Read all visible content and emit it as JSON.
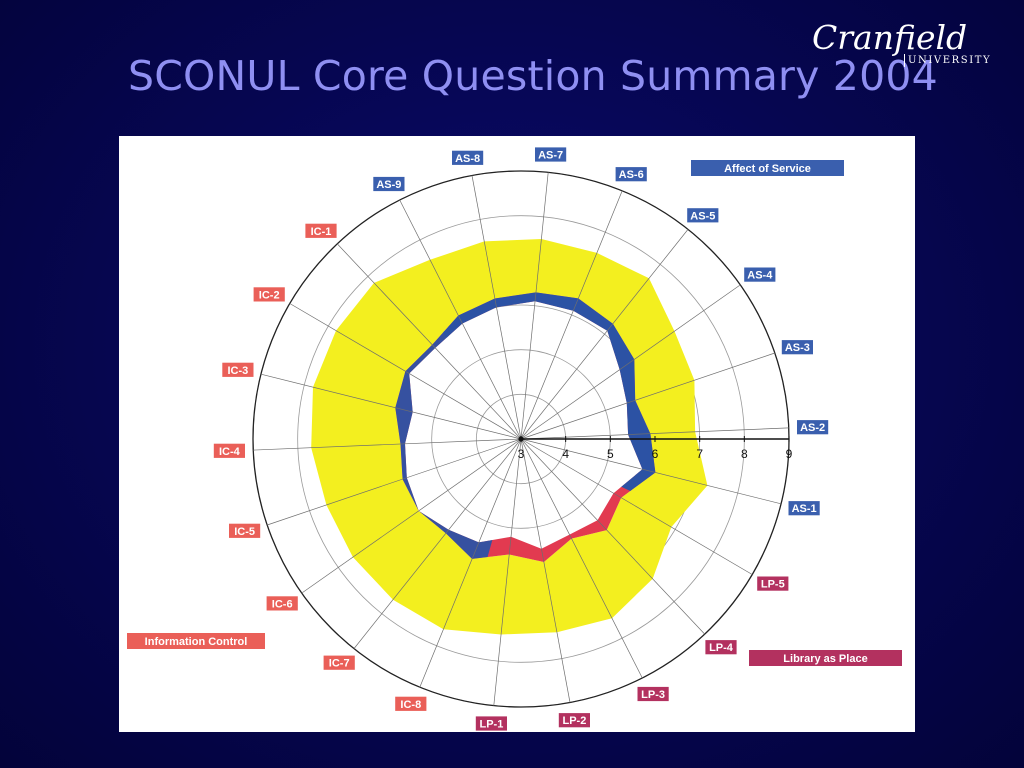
{
  "slide": {
    "title": "SCONUL Core Question Summary 2004"
  },
  "logo": {
    "name": "Cranfield",
    "sub": "UNIVERSITY"
  },
  "colors": {
    "band": "#f3ef1f",
    "perceived": "#2c52a4",
    "deficit": "#e23a50",
    "affect": "#3a5fae",
    "info": "#ea5f58",
    "place": "#b3315f"
  },
  "chart_data": {
    "type": "radar",
    "scale": {
      "min": 3,
      "max": 9,
      "ticks": [
        "3",
        "4",
        "5",
        "6",
        "7",
        "8",
        "9"
      ]
    },
    "axes": [
      {
        "label": "AS-1",
        "group": "affect",
        "minimum": 6.1,
        "desired": 7.3,
        "perceived": 5.8
      },
      {
        "label": "AS-2",
        "group": "affect",
        "minimum": 5.9,
        "desired": 6.9,
        "perceived": 5.4
      },
      {
        "label": "AS-3",
        "group": "affect",
        "minimum": 5.7,
        "desired": 7.1,
        "perceived": 5.5
      },
      {
        "label": "AS-4",
        "group": "affect",
        "minimum": 6.1,
        "desired": 7.2,
        "perceived": 5.7
      },
      {
        "label": "AS-5",
        "group": "affect",
        "minimum": 6.3,
        "desired": 7.6,
        "perceived": 6.1
      },
      {
        "label": "AS-6",
        "group": "affect",
        "minimum": 6.4,
        "desired": 7.5,
        "perceived": 6.1
      },
      {
        "label": "AS-7",
        "group": "affect",
        "minimum": 6.3,
        "desired": 7.5,
        "perceived": 6.1
      },
      {
        "label": "AS-8",
        "group": "affect",
        "minimum": 6.2,
        "desired": 7.5,
        "perceived": 6.0
      },
      {
        "label": "AS-9",
        "group": "affect",
        "minimum": 6.1,
        "desired": 7.5,
        "perceived": 5.9
      },
      {
        "label": "IC-1",
        "group": "info",
        "minimum": 5.9,
        "desired": 7.8,
        "perceived": 5.8
      },
      {
        "label": "IC-2",
        "group": "info",
        "minimum": 6.0,
        "desired": 7.8,
        "perceived": 5.9
      },
      {
        "label": "IC-3",
        "group": "info",
        "minimum": 5.9,
        "desired": 7.8,
        "perceived": 5.5
      },
      {
        "label": "IC-4",
        "group": "info",
        "minimum": 5.7,
        "desired": 7.7,
        "perceived": 5.6
      },
      {
        "label": "IC-5",
        "group": "info",
        "minimum": 5.8,
        "desired": 7.6,
        "perceived": 5.7
      },
      {
        "label": "IC-6",
        "group": "info",
        "minimum": 5.8,
        "desired": 7.6,
        "perceived": 5.8
      },
      {
        "label": "IC-7",
        "group": "info",
        "minimum": 5.7,
        "desired": 7.6,
        "perceived": 5.6
      },
      {
        "label": "IC-8",
        "group": "info",
        "minimum": 5.9,
        "desired": 7.6,
        "perceived": 5.5
      },
      {
        "label": "LP-1",
        "group": "place",
        "minimum": 5.6,
        "desired": 7.4,
        "perceived": 5.2
      },
      {
        "label": "LP-2",
        "group": "place",
        "minimum": 5.8,
        "desired": 7.4,
        "perceived": 5.5
      },
      {
        "label": "LP-3",
        "group": "place",
        "minimum": 5.5,
        "desired": 7.5,
        "perceived": 5.4
      },
      {
        "label": "LP-4",
        "group": "place",
        "minimum": 5.8,
        "desired": 7.3,
        "perceived": 5.5
      },
      {
        "label": "LP-5",
        "group": "place",
        "minimum": 5.6,
        "desired": 6.9,
        "perceived": 5.4
      }
    ],
    "legend": [
      {
        "label": "Affect of Service",
        "group": "affect",
        "placement": "top-right"
      },
      {
        "label": "Information Control",
        "group": "info",
        "placement": "left"
      },
      {
        "label": "Library as Place",
        "group": "place",
        "placement": "bottom-right"
      }
    ]
  }
}
